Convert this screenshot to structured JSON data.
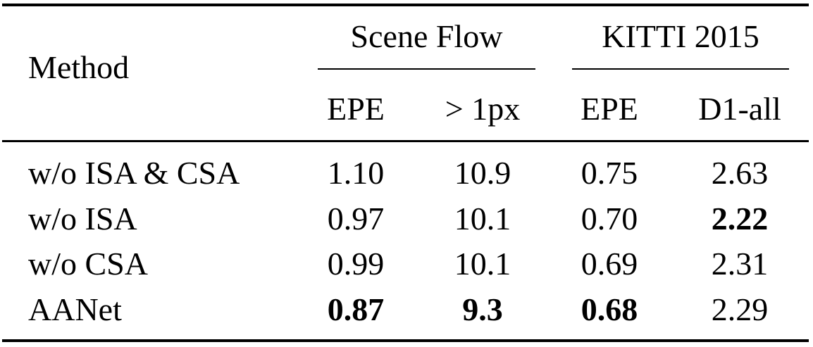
{
  "table": {
    "method_header": "Method",
    "groups": [
      {
        "label": "Scene Flow"
      },
      {
        "label": "KITTI 2015"
      }
    ],
    "subheaders": [
      "EPE",
      "> 1px",
      "EPE",
      "D1-all"
    ],
    "rows": [
      {
        "method": "w/o ISA & CSA",
        "values": [
          "1.10",
          "10.9",
          "0.75",
          "2.63"
        ],
        "bold": [
          false,
          false,
          false,
          false
        ]
      },
      {
        "method": "w/o ISA",
        "values": [
          "0.97",
          "10.1",
          "0.70",
          "2.22"
        ],
        "bold": [
          false,
          false,
          false,
          true
        ]
      },
      {
        "method": "w/o CSA",
        "values": [
          "0.99",
          "10.1",
          "0.69",
          "2.31"
        ],
        "bold": [
          false,
          false,
          false,
          false
        ]
      },
      {
        "method": "AANet",
        "values": [
          "0.87",
          "9.3",
          "0.68",
          "2.29"
        ],
        "bold": [
          true,
          true,
          true,
          false
        ]
      }
    ]
  }
}
